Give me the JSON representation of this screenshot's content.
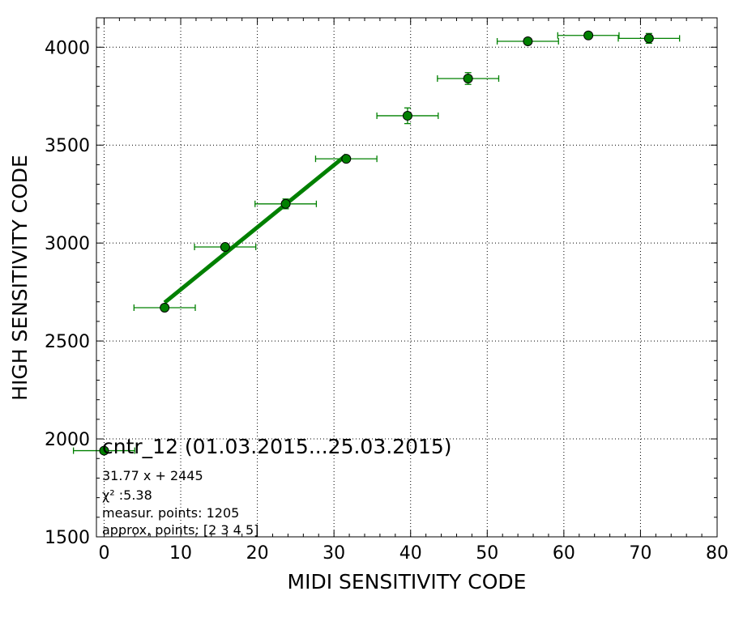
{
  "chart_data": {
    "type": "scatter",
    "xlabel": "MIDI SENSITIVITY CODE",
    "ylabel": "HIGH SENSITIVITY CODE",
    "xlim": [
      -1,
      80
    ],
    "ylim": [
      1500,
      4150
    ],
    "xticks": [
      0,
      10,
      20,
      30,
      40,
      50,
      60,
      70,
      80
    ],
    "yticks": [
      1500,
      2000,
      2500,
      3000,
      3500,
      4000
    ],
    "xtick_labels": [
      "0",
      "10",
      "20",
      "30",
      "40",
      "50",
      "60",
      "70",
      "80"
    ],
    "ytick_labels": [
      "1500",
      "2000",
      "2500",
      "3000",
      "3500",
      "4000"
    ],
    "grid": true,
    "color": "#008000",
    "points": [
      {
        "x": 0.0,
        "y": 1940,
        "xerr": 4.0,
        "yerr": 10
      },
      {
        "x": 7.9,
        "y": 2670,
        "xerr": 4.0,
        "yerr": 12
      },
      {
        "x": 15.8,
        "y": 2980,
        "xerr": 4.0,
        "yerr": 15
      },
      {
        "x": 23.7,
        "y": 3200,
        "xerr": 4.0,
        "yerr": 25
      },
      {
        "x": 31.6,
        "y": 3430,
        "xerr": 4.0,
        "yerr": 15
      },
      {
        "x": 39.6,
        "y": 3650,
        "xerr": 4.0,
        "yerr": 40
      },
      {
        "x": 47.5,
        "y": 3840,
        "xerr": 4.0,
        "yerr": 30
      },
      {
        "x": 55.3,
        "y": 4030,
        "xerr": 4.0,
        "yerr": 12
      },
      {
        "x": 63.2,
        "y": 4060,
        "xerr": 4.0,
        "yerr": 12
      },
      {
        "x": 71.1,
        "y": 4045,
        "xerr": 4.0,
        "yerr": 25
      }
    ],
    "fit": {
      "slope": 31.77,
      "intercept": 2445,
      "x_range": [
        7.9,
        31.6
      ]
    },
    "annotations": {
      "title": "cntr_12 (01.03.2015...25.03.2015)",
      "equation": "31.77 x + 2445",
      "chi2": "χ² :5.38",
      "measur_points": "measur. points: 1205",
      "approx_points": "approx, points: [2 3 4 5]"
    }
  }
}
